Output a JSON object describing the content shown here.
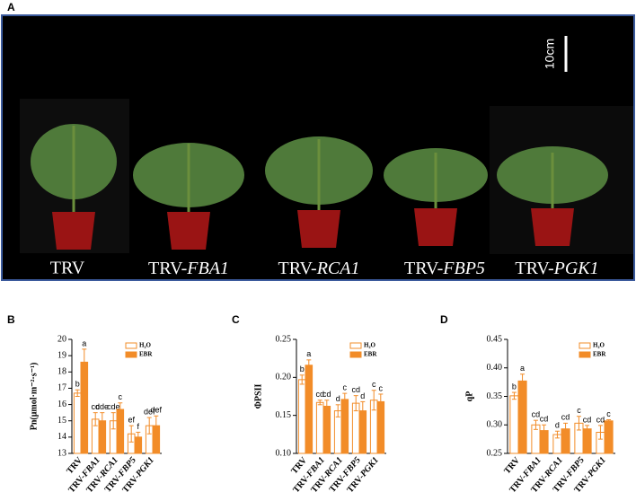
{
  "panel_a": {
    "panel": "A",
    "scale": "10cm",
    "labels": [
      "TRV",
      "TRV-FBA1",
      "TRV-RCA1",
      "TRV-FBP5",
      "TRV-PGK1"
    ]
  },
  "chart_data": [
    {
      "type": "bar",
      "panel": "B",
      "ylabel": "Pn(μmol·m⁻²·s⁻¹)",
      "categories": [
        "TRV",
        "TRV-FBA1",
        "TRV-RCA1",
        "TRV-FBP5",
        "TRV-PGK1"
      ],
      "ylim": [
        13,
        20
      ],
      "yticks": [
        13,
        14,
        15,
        16,
        17,
        18,
        19,
        20
      ],
      "series": [
        {
          "name": "H₂O",
          "color": "#f28c28",
          "filled": false,
          "values": [
            16.7,
            15.1,
            15.0,
            14.2,
            14.7
          ],
          "errors": [
            0.2,
            0.4,
            0.5,
            0.5,
            0.5
          ],
          "letters": [
            "b",
            "cd",
            "cde",
            "ef",
            "def"
          ]
        },
        {
          "name": "EBR",
          "color": "#f28c28",
          "filled": true,
          "values": [
            18.6,
            15.0,
            15.7,
            14.0,
            14.7
          ],
          "errors": [
            0.8,
            0.5,
            0.4,
            0.3,
            0.6
          ],
          "letters": [
            "a",
            "cde",
            "c",
            "f",
            "def"
          ]
        }
      ]
    },
    {
      "type": "bar",
      "panel": "C",
      "ylabel": "ΦPSII",
      "categories": [
        "TRV",
        "TRV-FBA1",
        "TRV-RCA1",
        "TRV-FBP5",
        "TRV-PGK1"
      ],
      "ylim": [
        0.1,
        0.25
      ],
      "yticks": [
        {
          "value": 0.1,
          "label": "0.10"
        },
        0.15,
        {
          "value": 0.2,
          "label": "0.20"
        },
        0.25
      ],
      "series": [
        {
          "name": "H₂O",
          "color": "#f28c28",
          "filled": false,
          "values": [
            0.197,
            0.167,
            0.156,
            0.166,
            0.17
          ],
          "errors": [
            0.006,
            0.003,
            0.008,
            0.01,
            0.013
          ],
          "letters": [
            "b",
            "cd",
            "d",
            "cd",
            "c"
          ]
        },
        {
          "name": "EBR",
          "color": "#f28c28",
          "filled": true,
          "values": [
            0.216,
            0.162,
            0.171,
            0.156,
            0.168
          ],
          "errors": [
            0.007,
            0.008,
            0.008,
            0.012,
            0.01
          ],
          "letters": [
            "a",
            "cd",
            "c",
            "d",
            "c"
          ]
        }
      ]
    },
    {
      "type": "bar",
      "panel": "D",
      "ylabel": "qP",
      "categories": [
        "TRV",
        "TRV-FBA1",
        "TRV-RCA1",
        "TRV-FBP5",
        "TRV-PGK1"
      ],
      "ylim": [
        0.25,
        0.45
      ],
      "yticks": [
        0.25,
        {
          "value": 0.3,
          "label": "0.30"
        },
        0.35,
        {
          "value": 0.4,
          "label": "0.40"
        },
        0.45
      ],
      "series": [
        {
          "name": "H₂O",
          "color": "#f28c28",
          "filled": false,
          "values": [
            0.351,
            0.3,
            0.283,
            0.303,
            0.287
          ],
          "errors": [
            0.006,
            0.008,
            0.006,
            0.012,
            0.012
          ],
          "letters": [
            "b",
            "cd",
            "d",
            "c",
            "cd"
          ]
        },
        {
          "name": "EBR",
          "color": "#f28c28",
          "filled": true,
          "values": [
            0.377,
            0.29,
            0.293,
            0.293,
            0.307
          ],
          "errors": [
            0.012,
            0.01,
            0.01,
            0.006,
            0.002
          ],
          "letters": [
            "a",
            "cd",
            "cd",
            "cd",
            "c"
          ]
        }
      ]
    }
  ]
}
